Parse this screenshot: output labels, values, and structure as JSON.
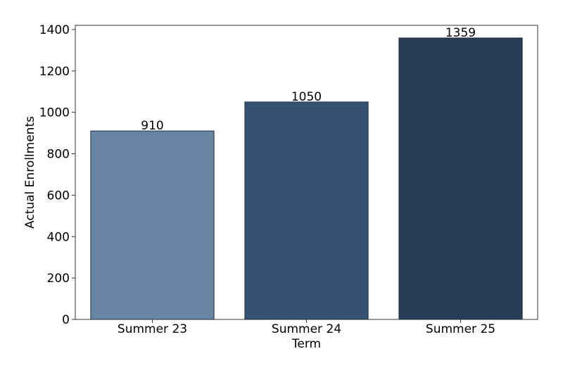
{
  "chart_data": {
    "type": "bar",
    "title": "",
    "xlabel": "Term",
    "ylabel": "Actual Enrollments",
    "categories": [
      "Summer 23",
      "Summer 24",
      "Summer 25"
    ],
    "values": [
      910,
      1050,
      1359
    ],
    "data_labels": [
      "910",
      "1050",
      "1359"
    ],
    "ylim": [
      0,
      1420
    ],
    "yticks": [
      0,
      200,
      400,
      600,
      800,
      1000,
      1200,
      1400
    ],
    "ytick_labels": [
      "0",
      "200",
      "400",
      "600",
      "800",
      "1000",
      "1200",
      "1400"
    ],
    "grid": false,
    "legend": "none",
    "colors": [
      "#6886a3",
      "#355275",
      "#283c57"
    ],
    "edge_color": "#1f2d3d"
  }
}
